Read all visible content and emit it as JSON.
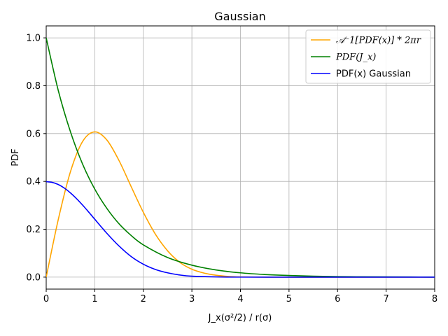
{
  "chart_data": {
    "type": "line",
    "title": "Gaussian",
    "xlabel": "J_x(σ²/2) / r(σ)",
    "ylabel": "PDF",
    "xlim": [
      0,
      8
    ],
    "ylim": [
      -0.05,
      1.05
    ],
    "grid": true,
    "legend_position": "top-right",
    "x_ticks": [
      "0",
      "1",
      "2",
      "3",
      "4",
      "5",
      "6",
      "7",
      "8"
    ],
    "y_ticks": [
      "0.0",
      "0.2",
      "0.4",
      "0.6",
      "0.8",
      "1.0"
    ],
    "series": [
      {
        "name": "𝒜⁻1[PDF(x)] * 2πr",
        "color": "#ffa500",
        "x": [
          0,
          0.25,
          0.5,
          0.75,
          1.0,
          1.25,
          1.5,
          1.75,
          2.0,
          2.25,
          2.5,
          2.75,
          3.0,
          3.25,
          3.5,
          3.75,
          4.0,
          4.5,
          5.0,
          6.0,
          7.0,
          8.0
        ],
        "y": [
          0.0,
          0.242,
          0.441,
          0.567,
          0.607,
          0.573,
          0.487,
          0.378,
          0.271,
          0.179,
          0.11,
          0.062,
          0.033,
          0.017,
          0.008,
          0.003,
          0.001,
          0.0,
          0.0,
          0.0,
          0.0,
          0.0
        ]
      },
      {
        "name": "PDF(J_x)",
        "color": "#008000",
        "x": [
          0,
          0.25,
          0.5,
          0.75,
          1.0,
          1.25,
          1.5,
          1.75,
          2.0,
          2.5,
          3.0,
          3.5,
          4.0,
          4.5,
          5.0,
          5.5,
          6.0,
          6.5,
          7.0,
          7.5,
          8.0
        ],
        "y": [
          1.0,
          0.779,
          0.607,
          0.472,
          0.368,
          0.287,
          0.223,
          0.174,
          0.135,
          0.082,
          0.05,
          0.03,
          0.018,
          0.011,
          0.007,
          0.004,
          0.002,
          0.0015,
          0.001,
          0.0006,
          0.0003
        ]
      },
      {
        "name": "PDF(x) Gaussian",
        "color": "#0000ff",
        "x": [
          0,
          0.125,
          0.25,
          0.375,
          0.5,
          0.625,
          0.75,
          0.875,
          1.0,
          1.25,
          1.5,
          1.75,
          2.0,
          2.25,
          2.5,
          2.75,
          3.0,
          3.5,
          4.0,
          5.0,
          6.0,
          7.0,
          8.0
        ],
        "y": [
          0.399,
          0.396,
          0.387,
          0.372,
          0.352,
          0.328,
          0.301,
          0.272,
          0.242,
          0.183,
          0.13,
          0.086,
          0.054,
          0.032,
          0.018,
          0.009,
          0.004,
          0.001,
          0.0001,
          0.0,
          0.0,
          0.0,
          0.0
        ]
      }
    ]
  }
}
